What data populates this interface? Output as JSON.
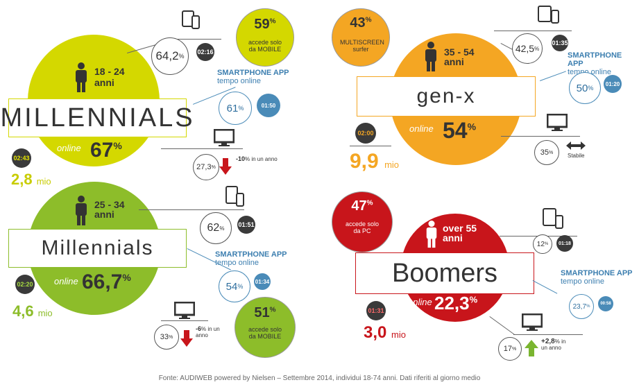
{
  "chart_data": {
    "type": "infographic",
    "segments": [
      {
        "key": "millennials_18_24",
        "title": "MILLENNIALS",
        "age": "18 - 24",
        "age_unit": "anni",
        "online_label": "online",
        "online_pct": "67",
        "daily_time": "02:43",
        "audience": "2,8",
        "audience_unit": "mio",
        "mobile_pct": "64,2",
        "mobile_time": "02:16",
        "mobile_only_pct": "59",
        "mobile_only_label": "accede solo da MOBILE",
        "app_label_1": "SMARTPHONE APP",
        "app_label_2": "tempo online",
        "app_pct": "61",
        "app_time": "01:50",
        "pc_pct": "27,3",
        "pc_change": "-10",
        "pc_change_unit": "% in un anno"
      },
      {
        "key": "millennials_25_34",
        "title": "Millennials",
        "age": "25 - 34",
        "age_unit": "anni",
        "online_label": "online",
        "online_pct": "66,7",
        "daily_time": "02:20",
        "audience": "4,6",
        "audience_unit": "mio",
        "mobile_pct": "62",
        "mobile_time": "01:51",
        "mobile_only_pct": "51",
        "mobile_only_label": "accede solo da MOBILE",
        "app_label_1": "SMARTPHONE APP",
        "app_label_2": "tempo online",
        "app_pct": "54",
        "app_time": "01:34",
        "pc_pct": "33",
        "pc_change": "-6",
        "pc_change_unit": "% in un anno"
      },
      {
        "key": "gen_x",
        "title": "gen-x",
        "age": "35 - 54",
        "age_unit": "anni",
        "online_label": "online",
        "online_pct": "54",
        "daily_time": "02:00",
        "audience": "9,9",
        "audience_unit": "mio",
        "mobile_pct": "42,5",
        "mobile_time": "01:35",
        "multiscreen_pct": "43",
        "multiscreen_label": "MULTISCREEN surfer",
        "app_label_1": "SMARTPHONE APP",
        "app_label_2": "tempo online",
        "app_pct": "50",
        "app_time": "01:20",
        "pc_pct": "35",
        "pc_change": "Stabile"
      },
      {
        "key": "boomers",
        "title": "Boomers",
        "age": "over 55",
        "age_unit": "anni",
        "online_label": "online",
        "online_pct": "22,3",
        "daily_time": "01:31",
        "audience": "3,0",
        "audience_unit": "mio",
        "mobile_pct": "12",
        "mobile_time": "01:18",
        "pc_only_pct": "47",
        "pc_only_label": "accede solo da PC",
        "app_label_1": "SMARTPHONE APP",
        "app_label_2": "tempo online",
        "app_pct": "23,7",
        "app_time": "00:58",
        "pc_pct": "17",
        "pc_change": "+2,8",
        "pc_change_unit": "% in un anno"
      }
    ],
    "source": "Fonte: AUDIWEB powered by Nielsen – Settembre 2014, individui 18-74 anni. Dati riferiti al giorno medio"
  },
  "colors": {
    "millennials_18_24": "#d4d800",
    "millennials_25_34": "#8dbd2a",
    "gen_x": "#f4a623",
    "boomers": "#c8151b",
    "app_blue": "#4a8bb8",
    "down_arrow": "#c8151b",
    "up_arrow": "#7ab530"
  },
  "pct_sign": "%",
  "icons": [
    "person-icon",
    "tablet-icon",
    "smartphone-icon",
    "monitor-icon",
    "arrow-down-icon",
    "arrow-up-icon",
    "double-arrow-icon"
  ]
}
